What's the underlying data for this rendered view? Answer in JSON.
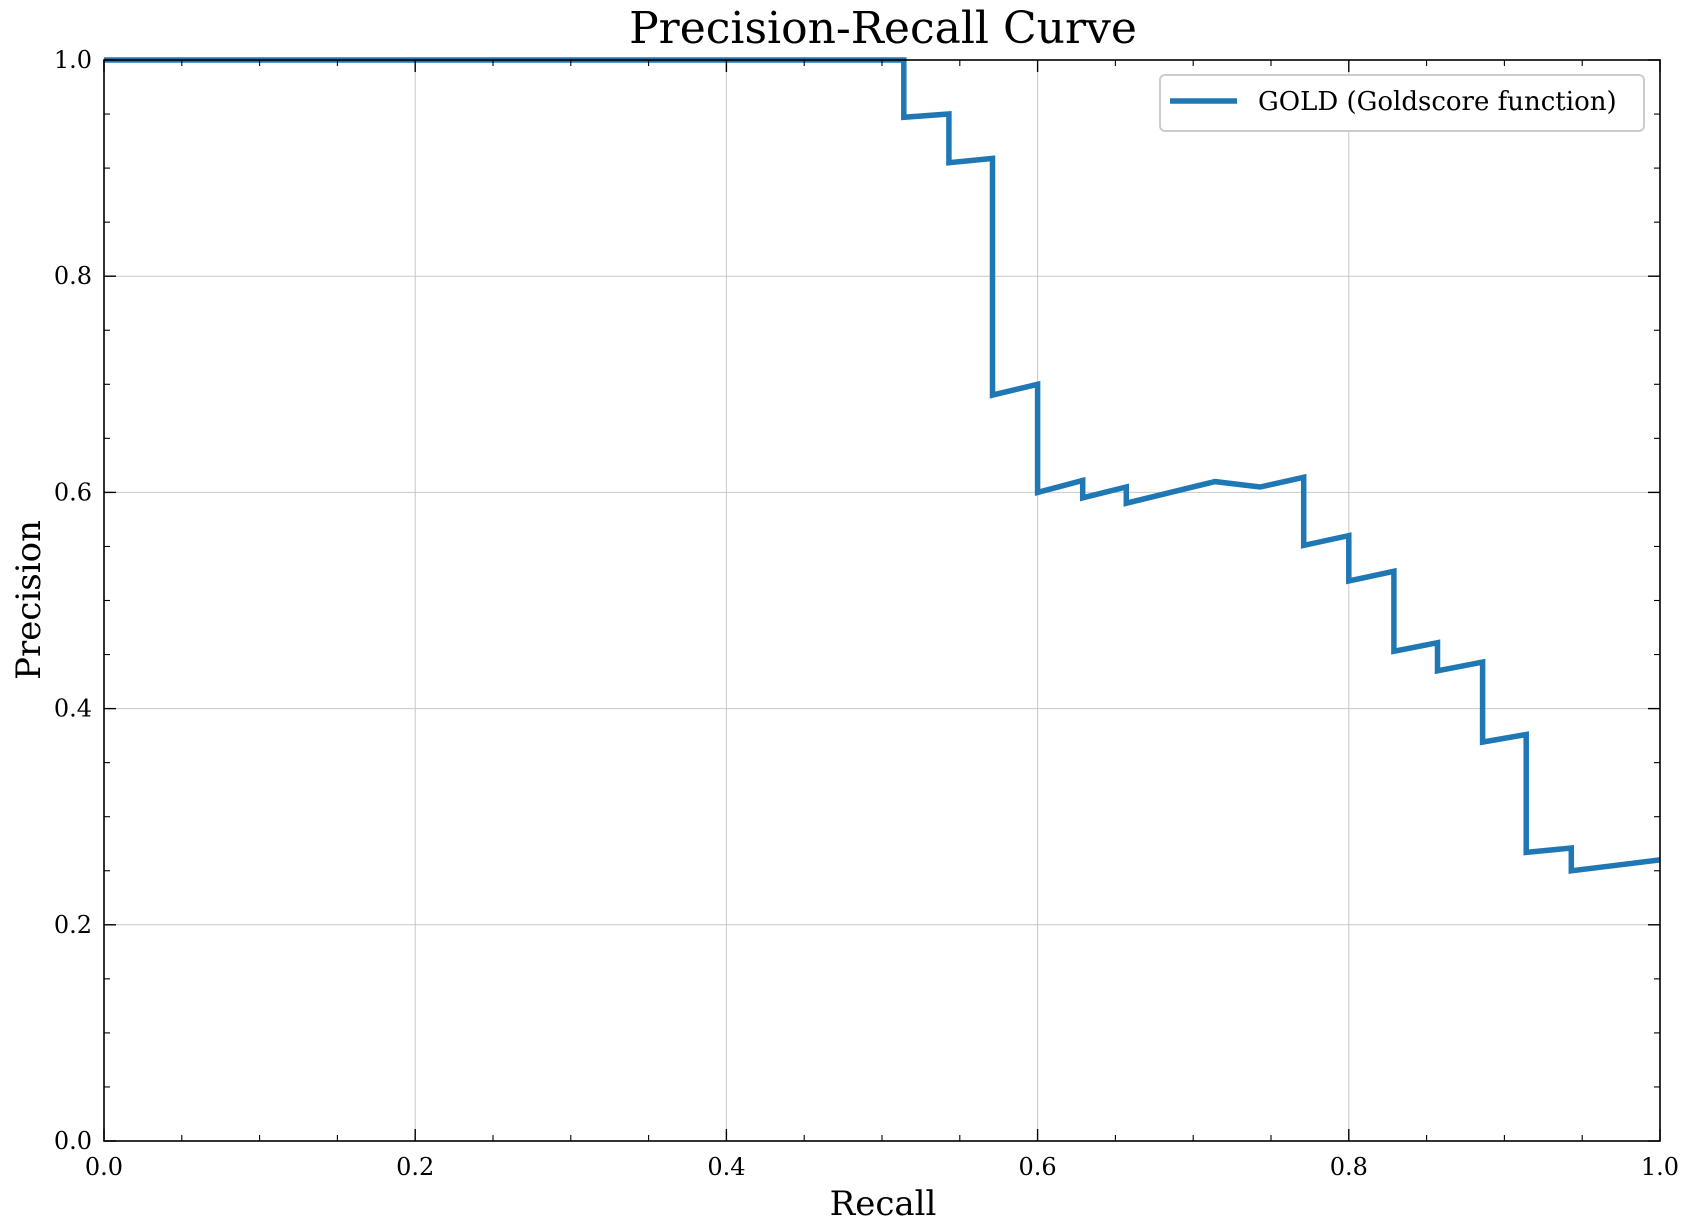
{
  "chart_data": {
    "type": "line",
    "title": "Precision-Recall Curve",
    "xlabel": "Recall",
    "ylabel": "Precision",
    "xlim": [
      0.0,
      1.0
    ],
    "ylim": [
      0.0,
      1.0
    ],
    "xticks": [
      "0.0",
      "0.2",
      "0.4",
      "0.6",
      "0.8",
      "1.0"
    ],
    "yticks": [
      "0.0",
      "0.2",
      "0.4",
      "0.6",
      "0.8",
      "1.0"
    ],
    "grid": true,
    "legend_position": "top-right",
    "series": [
      {
        "name": "GOLD (Goldscore function)",
        "color": "#1f77b4",
        "x": [
          0.0,
          0.514,
          0.514,
          0.543,
          0.543,
          0.571,
          0.571,
          0.6,
          0.6,
          0.629,
          0.629,
          0.657,
          0.657,
          0.714,
          0.743,
          0.771,
          0.771,
          0.8,
          0.8,
          0.829,
          0.829,
          0.857,
          0.857,
          0.886,
          0.886,
          0.914,
          0.914,
          0.943,
          0.943,
          1.0
        ],
        "y": [
          1.0,
          1.0,
          0.947,
          0.95,
          0.905,
          0.909,
          0.69,
          0.7,
          0.6,
          0.611,
          0.595,
          0.605,
          0.59,
          0.61,
          0.605,
          0.614,
          0.551,
          0.56,
          0.518,
          0.527,
          0.453,
          0.461,
          0.435,
          0.443,
          0.369,
          0.376,
          0.267,
          0.271,
          0.25,
          0.26
        ]
      }
    ]
  }
}
